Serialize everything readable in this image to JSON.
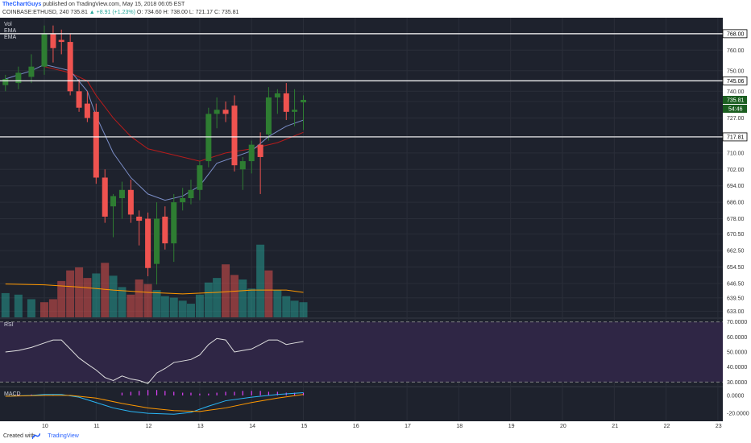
{
  "header": {
    "author": "TheChartGuys",
    "published": "published on TradingView.com, May 15, 2018 06:05 EST",
    "symbol": "COINBASE:ETHUSD, 240",
    "last": "735.81",
    "change": "▲ +8.91 (+1.23%)",
    "ohlc": "O: 734.60 H: 738.00 L: 721.17 C: 735.81"
  },
  "footer": {
    "created_with": "Created with",
    "brand": "TradingView"
  },
  "colors": {
    "background": "#1e222d",
    "up": "#2e7d32",
    "down": "#ef5350",
    "ema_fast": "#7b8ec8",
    "ema_slow": "#b71c1c",
    "rsi_band": "#2f2645",
    "rsi_line": "#e0e0e0",
    "macd_line": "#29b6f6",
    "signal_line": "#ff9800",
    "hist": "#e040fb",
    "vol_up": "#26a69a",
    "vol_down": "#ef5350",
    "vol_ma": "#ff9800"
  },
  "chart_data": [
    {
      "type": "candlestick",
      "title": "COINBASE:ETHUSD, 240",
      "labels": [
        "Vol",
        "EMA",
        "EMA"
      ],
      "ylim": [
        630,
        775
      ],
      "xlabel": "",
      "ylabel": "",
      "x_ticks": [
        "10",
        "11",
        "12",
        "13",
        "14",
        "15",
        "16",
        "17",
        "18",
        "19",
        "20",
        "21",
        "22",
        "23"
      ],
      "y_ticks": [
        633.0,
        639.5,
        646.5,
        654.5,
        662.5,
        670.5,
        678.0,
        686.0,
        694.0,
        702.0,
        710.0,
        718.0,
        727.0,
        735.0,
        740.0,
        750.0,
        760.0
      ],
      "y_tick_labels": [
        "633.00",
        "639.50",
        "646.50",
        "654.50",
        "662.50",
        "670.50",
        "678.00",
        "686.00",
        "694.00",
        "702.00",
        "710.00",
        "718.00",
        "727.00",
        "735.00",
        "740.00",
        "750.00",
        "760.00"
      ],
      "horizontal_lines": [
        {
          "value": 768.0,
          "label": "768.00"
        },
        {
          "value": 745.06,
          "label": "745.06"
        },
        {
          "value": 717.81,
          "label": "717.81"
        }
      ],
      "price_label": {
        "value": 735.81,
        "label": "735.81"
      },
      "countdown_label": "54:46",
      "candles": [
        {
          "x": 9.25,
          "o": 743,
          "h": 748,
          "l": 740,
          "c": 746
        },
        {
          "x": 9.5,
          "o": 744,
          "h": 752,
          "l": 741,
          "c": 749
        },
        {
          "x": 9.75,
          "o": 747,
          "h": 758,
          "l": 744,
          "c": 752
        },
        {
          "x": 10.0,
          "o": 752,
          "h": 772,
          "l": 748,
          "c": 768
        },
        {
          "x": 10.17,
          "o": 768,
          "h": 772,
          "l": 754,
          "c": 761
        },
        {
          "x": 10.33,
          "o": 765,
          "h": 770,
          "l": 758,
          "c": 764
        },
        {
          "x": 10.5,
          "o": 764,
          "h": 768,
          "l": 738,
          "c": 740
        },
        {
          "x": 10.67,
          "o": 740,
          "h": 746,
          "l": 730,
          "c": 732
        },
        {
          "x": 10.83,
          "o": 734,
          "h": 740,
          "l": 725,
          "c": 727
        },
        {
          "x": 11.0,
          "o": 730,
          "h": 734,
          "l": 695,
          "c": 698
        },
        {
          "x": 11.17,
          "o": 698,
          "h": 702,
          "l": 676,
          "c": 679
        },
        {
          "x": 11.33,
          "o": 684,
          "h": 690,
          "l": 669,
          "c": 689
        },
        {
          "x": 11.5,
          "o": 688,
          "h": 696,
          "l": 678,
          "c": 692
        },
        {
          "x": 11.67,
          "o": 692,
          "h": 697,
          "l": 676,
          "c": 680
        },
        {
          "x": 11.83,
          "o": 679,
          "h": 682,
          "l": 665,
          "c": 677
        },
        {
          "x": 12.0,
          "o": 678,
          "h": 681,
          "l": 650,
          "c": 654
        },
        {
          "x": 12.17,
          "o": 656,
          "h": 686,
          "l": 646,
          "c": 678
        },
        {
          "x": 12.33,
          "o": 679,
          "h": 684,
          "l": 663,
          "c": 666
        },
        {
          "x": 12.5,
          "o": 666,
          "h": 690,
          "l": 657,
          "c": 686
        },
        {
          "x": 12.67,
          "o": 686,
          "h": 693,
          "l": 682,
          "c": 688
        },
        {
          "x": 12.83,
          "o": 688,
          "h": 697,
          "l": 685,
          "c": 692
        },
        {
          "x": 13.0,
          "o": 692,
          "h": 706,
          "l": 687,
          "c": 704
        },
        {
          "x": 13.17,
          "o": 706,
          "h": 732,
          "l": 703,
          "c": 729
        },
        {
          "x": 13.33,
          "o": 729,
          "h": 737,
          "l": 722,
          "c": 731
        },
        {
          "x": 13.5,
          "o": 731,
          "h": 735,
          "l": 725,
          "c": 729
        },
        {
          "x": 13.67,
          "o": 733,
          "h": 738,
          "l": 701,
          "c": 704
        },
        {
          "x": 13.83,
          "o": 702,
          "h": 708,
          "l": 692,
          "c": 706
        },
        {
          "x": 14.0,
          "o": 706,
          "h": 716,
          "l": 700,
          "c": 714
        },
        {
          "x": 14.17,
          "o": 714,
          "h": 720,
          "l": 690,
          "c": 708
        },
        {
          "x": 14.33,
          "o": 719,
          "h": 742,
          "l": 716,
          "c": 737
        },
        {
          "x": 14.5,
          "o": 737,
          "h": 741,
          "l": 729,
          "c": 739
        },
        {
          "x": 14.67,
          "o": 739,
          "h": 744,
          "l": 726,
          "c": 730
        },
        {
          "x": 14.83,
          "o": 730,
          "h": 741,
          "l": 723,
          "c": 731
        },
        {
          "x": 15.0,
          "o": 734.6,
          "h": 738,
          "l": 721.17,
          "c": 735.81
        }
      ],
      "ema_fast": [
        [
          9.25,
          746
        ],
        [
          9.75,
          750
        ],
        [
          10.0,
          753
        ],
        [
          10.5,
          750
        ],
        [
          10.83,
          740
        ],
        [
          11.0,
          728
        ],
        [
          11.33,
          710
        ],
        [
          11.67,
          698
        ],
        [
          12.0,
          690
        ],
        [
          12.33,
          687
        ],
        [
          12.67,
          689
        ],
        [
          13.0,
          694
        ],
        [
          13.33,
          705
        ],
        [
          13.67,
          708
        ],
        [
          14.0,
          711
        ],
        [
          14.33,
          718
        ],
        [
          14.67,
          723
        ],
        [
          15.0,
          726
        ]
      ],
      "ema_slow": [
        [
          10.0,
          752
        ],
        [
          10.5,
          749
        ],
        [
          10.83,
          745
        ],
        [
          11.0,
          738
        ],
        [
          11.33,
          727
        ],
        [
          11.67,
          718
        ],
        [
          12.0,
          712
        ],
        [
          12.5,
          709
        ],
        [
          13.0,
          706
        ],
        [
          13.5,
          710
        ],
        [
          14.0,
          712
        ],
        [
          14.5,
          715
        ],
        [
          15.0,
          720
        ]
      ],
      "volume": {
        "ylim": [
          0,
          100
        ],
        "bars": [
          {
            "x": 9.25,
            "v": 32,
            "up": true
          },
          {
            "x": 9.5,
            "v": 30,
            "up": true
          },
          {
            "x": 9.75,
            "v": 24,
            "up": true
          },
          {
            "x": 10.0,
            "v": 20,
            "up": false
          },
          {
            "x": 10.17,
            "v": 24,
            "up": false
          },
          {
            "x": 10.33,
            "v": 48,
            "up": false
          },
          {
            "x": 10.5,
            "v": 62,
            "up": false
          },
          {
            "x": 10.67,
            "v": 66,
            "up": false
          },
          {
            "x": 10.83,
            "v": 52,
            "up": false
          },
          {
            "x": 11.0,
            "v": 58,
            "up": true
          },
          {
            "x": 11.17,
            "v": 72,
            "up": false
          },
          {
            "x": 11.33,
            "v": 55,
            "up": true
          },
          {
            "x": 11.5,
            "v": 40,
            "up": true
          },
          {
            "x": 11.67,
            "v": 30,
            "up": false
          },
          {
            "x": 11.83,
            "v": 50,
            "up": false
          },
          {
            "x": 12.0,
            "v": 44,
            "up": false
          },
          {
            "x": 12.17,
            "v": 36,
            "up": true
          },
          {
            "x": 12.33,
            "v": 28,
            "up": true
          },
          {
            "x": 12.5,
            "v": 26,
            "up": true
          },
          {
            "x": 12.67,
            "v": 22,
            "up": true
          },
          {
            "x": 12.83,
            "v": 18,
            "up": true
          },
          {
            "x": 13.0,
            "v": 30,
            "up": true
          },
          {
            "x": 13.17,
            "v": 46,
            "up": true
          },
          {
            "x": 13.33,
            "v": 52,
            "up": true
          },
          {
            "x": 13.5,
            "v": 70,
            "up": false
          },
          {
            "x": 13.67,
            "v": 56,
            "up": false
          },
          {
            "x": 13.83,
            "v": 50,
            "up": true
          },
          {
            "x": 14.0,
            "v": 38,
            "up": true
          },
          {
            "x": 14.17,
            "v": 96,
            "up": true
          },
          {
            "x": 14.33,
            "v": 62,
            "up": false
          },
          {
            "x": 14.5,
            "v": 36,
            "up": true
          },
          {
            "x": 14.67,
            "v": 28,
            "up": true
          },
          {
            "x": 14.83,
            "v": 22,
            "up": true
          },
          {
            "x": 15.0,
            "v": 20,
            "up": true
          }
        ],
        "ma": [
          [
            9.25,
            44
          ],
          [
            10.0,
            43
          ],
          [
            10.67,
            40
          ],
          [
            11.33,
            36
          ],
          [
            12.0,
            33
          ],
          [
            12.67,
            31
          ],
          [
            13.33,
            33
          ],
          [
            14.0,
            36
          ],
          [
            14.67,
            36
          ],
          [
            15.0,
            33
          ]
        ]
      }
    },
    {
      "type": "line",
      "title": "RSI",
      "ylim": [
        28,
        72
      ],
      "y_ticks": [
        30,
        40,
        50,
        60,
        70
      ],
      "y_tick_labels": [
        "30.0000",
        "40.0000",
        "50.0000",
        "60.0000",
        "70.0000"
      ],
      "band": [
        30,
        70
      ],
      "series": [
        {
          "values": [
            [
              9.25,
              50
            ],
            [
              9.5,
              51
            ],
            [
              9.75,
              53
            ],
            [
              10.0,
              56
            ],
            [
              10.17,
              58
            ],
            [
              10.33,
              58
            ],
            [
              10.5,
              52
            ],
            [
              10.67,
              46
            ],
            [
              10.83,
              42
            ],
            [
              11.0,
              38
            ],
            [
              11.17,
              33
            ],
            [
              11.33,
              31
            ],
            [
              11.5,
              34
            ],
            [
              11.67,
              32
            ],
            [
              11.83,
              31
            ],
            [
              12.0,
              29
            ],
            [
              12.17,
              36
            ],
            [
              12.33,
              39
            ],
            [
              12.5,
              43
            ],
            [
              12.67,
              44
            ],
            [
              12.83,
              45
            ],
            [
              13.0,
              48
            ],
            [
              13.17,
              55
            ],
            [
              13.33,
              59
            ],
            [
              13.5,
              58
            ],
            [
              13.67,
              50
            ],
            [
              13.83,
              51
            ],
            [
              14.0,
              52
            ],
            [
              14.17,
              55
            ],
            [
              14.33,
              58
            ],
            [
              14.5,
              58
            ],
            [
              14.67,
              55
            ],
            [
              14.83,
              56
            ],
            [
              15.0,
              57
            ]
          ]
        }
      ]
    },
    {
      "type": "line",
      "title": "MACD",
      "ylim": [
        -28,
        8
      ],
      "y_ticks": [
        0,
        -20
      ],
      "y_tick_labels": [
        "0.0000",
        "-20.0000"
      ],
      "series": [
        {
          "values": [
            [
              9.25,
              -1
            ],
            [
              9.75,
              0
            ],
            [
              10.0,
              1
            ],
            [
              10.33,
              1
            ],
            [
              10.67,
              -2
            ],
            [
              11.0,
              -8
            ],
            [
              11.33,
              -14
            ],
            [
              11.67,
              -18
            ],
            [
              12.0,
              -20
            ],
            [
              12.5,
              -21
            ],
            [
              12.83,
              -19
            ],
            [
              13.17,
              -12
            ],
            [
              13.5,
              -6
            ],
            [
              14.0,
              -2
            ],
            [
              14.5,
              1
            ],
            [
              15.0,
              3
            ]
          ]
        },
        {
          "values": [
            [
              9.25,
              -1
            ],
            [
              10.0,
              0
            ],
            [
              10.5,
              0
            ],
            [
              11.0,
              -3
            ],
            [
              11.5,
              -9
            ],
            [
              12.0,
              -14
            ],
            [
              12.5,
              -17
            ],
            [
              13.0,
              -18
            ],
            [
              13.5,
              -14
            ],
            [
              14.0,
              -8
            ],
            [
              14.5,
              -3
            ],
            [
              15.0,
              1
            ]
          ]
        }
      ],
      "histogram": [
        [
          9.5,
          1
        ],
        [
          9.75,
          1
        ],
        [
          10.0,
          1
        ],
        [
          10.17,
          1
        ],
        [
          11.5,
          3
        ],
        [
          11.67,
          4
        ],
        [
          11.83,
          5
        ],
        [
          12.0,
          6
        ],
        [
          12.17,
          6
        ],
        [
          12.33,
          5
        ],
        [
          12.5,
          4
        ],
        [
          12.67,
          3
        ],
        [
          12.83,
          3
        ],
        [
          13.0,
          2
        ],
        [
          13.17,
          2
        ],
        [
          13.33,
          3
        ],
        [
          13.5,
          4
        ],
        [
          13.67,
          4
        ],
        [
          13.83,
          5
        ],
        [
          14.0,
          5
        ],
        [
          14.17,
          5
        ],
        [
          14.33,
          4
        ],
        [
          14.5,
          4
        ],
        [
          14.67,
          3
        ],
        [
          14.83,
          3
        ],
        [
          15.0,
          3
        ]
      ]
    }
  ]
}
